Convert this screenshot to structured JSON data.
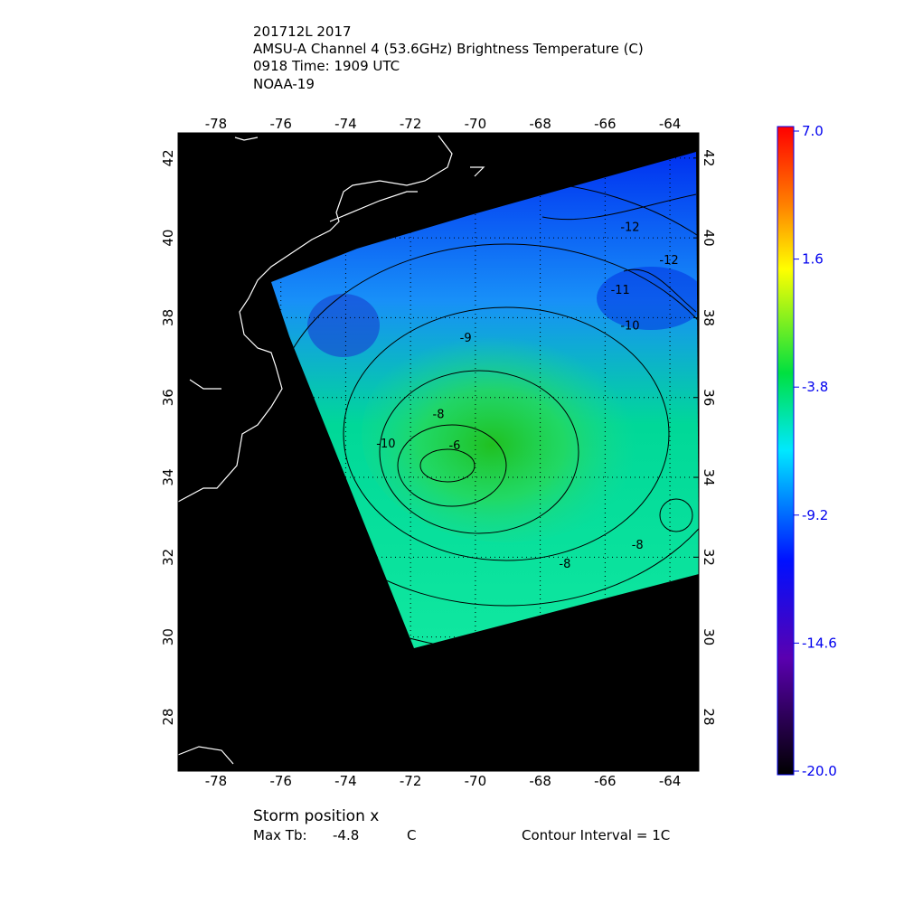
{
  "chart_data": {
    "type": "map",
    "title": [
      "201712L 2017",
      "AMSU-A Channel 4 (53.6GHz) Brightness Temperature (C)",
      "0918 Time: 1909 UTC",
      "NOAA-19"
    ],
    "xlim": [
      -79.17,
      -63.11
    ],
    "ylim": [
      26.64,
      42.63
    ],
    "xticks": [
      -78,
      -76,
      -74,
      -72,
      -70,
      -68,
      -66,
      -64
    ],
    "yticks": [
      28,
      30,
      32,
      34,
      36,
      38,
      40,
      42
    ],
    "grid": true,
    "contour_labels": [
      {
        "value": -12,
        "lon": -65.23,
        "lat": 40.17
      },
      {
        "value": -12,
        "lon": -64.03,
        "lat": 39.35
      },
      {
        "value": -11,
        "lon": -65.53,
        "lat": 38.6
      },
      {
        "value": -10,
        "lon": -65.23,
        "lat": 37.7
      },
      {
        "value": -9,
        "lon": -70.3,
        "lat": 37.4
      },
      {
        "value": -8,
        "lon": -71.14,
        "lat": 35.48
      },
      {
        "value": -10,
        "lon": -72.76,
        "lat": 34.75
      },
      {
        "value": -6,
        "lon": -70.64,
        "lat": 34.7
      },
      {
        "value": -8,
        "lon": -65.0,
        "lat": 32.21
      },
      {
        "value": -8,
        "lon": -67.24,
        "lat": 31.74
      }
    ],
    "colorbar": {
      "lim": [
        -20,
        7
      ],
      "ticks": [
        {
          "value": 7,
          "label": "7.0"
        },
        {
          "value": 1.6,
          "label": "1.6"
        },
        {
          "value": -3.8,
          "label": "-3.8"
        },
        {
          "value": -9.2,
          "label": "-9.2"
        },
        {
          "value": -14.6,
          "label": "-14.6"
        },
        {
          "value": -20,
          "label": "-20.0"
        }
      ]
    },
    "storm_position": "Storm position x",
    "max_tb_label": "Max Tb:",
    "max_tb": -4.8,
    "max_tb_unit": "C",
    "contour_interval": "Contour Interval = 1C"
  }
}
